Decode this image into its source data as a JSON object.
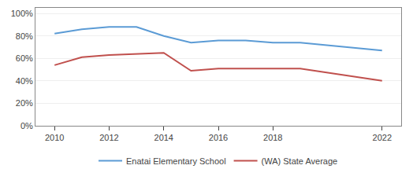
{
  "chart_data": {
    "type": "line",
    "x": [
      2010,
      2011,
      2012,
      2013,
      2014,
      2015,
      2016,
      2017,
      2018,
      2019,
      2022
    ],
    "series": [
      {
        "name": "Enatai Elementary School",
        "color": "#5B9BD5",
        "values": [
          0.82,
          0.86,
          0.88,
          0.88,
          0.8,
          0.74,
          0.76,
          0.76,
          0.74,
          0.74,
          0.67
        ]
      },
      {
        "name": "(WA) State Average",
        "color": "#C0504D",
        "values": [
          0.54,
          0.61,
          0.63,
          0.64,
          0.65,
          0.49,
          0.51,
          0.51,
          0.51,
          0.51,
          0.4
        ]
      }
    ],
    "xlim": [
      2009.3,
      2022.7
    ],
    "xticks": [
      2010,
      2012,
      2014,
      2016,
      2018,
      2022
    ],
    "ylim": [
      0,
      1.05
    ],
    "yticks": [
      {
        "value": 0.0,
        "label": "0%"
      },
      {
        "value": 0.2,
        "label": "20%"
      },
      {
        "value": 0.4,
        "label": "40%"
      },
      {
        "value": 0.6,
        "label": "60%"
      },
      {
        "value": 0.8,
        "label": "80%"
      },
      {
        "value": 1.0,
        "label": "100%"
      }
    ],
    "grid": "y",
    "legend": "bottom"
  }
}
